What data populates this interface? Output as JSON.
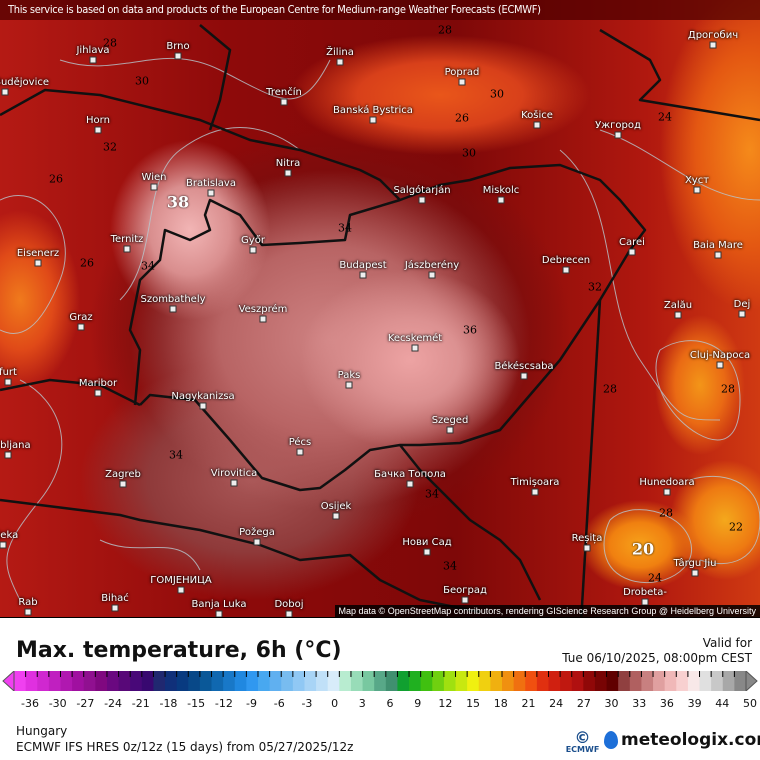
{
  "header": {
    "notice": "This service is based on data and products of the European Centre for Medium-range Weather Forecasts (ECMWF)"
  },
  "map": {
    "cities": [
      "Jihlava",
      "Brno",
      "České Budějovice",
      "Žilina",
      "Poprad",
      "Banská Bystrica",
      "Košice",
      "Ужгород",
      "Дрогобич",
      "Trenčín",
      "Horn",
      "Wien",
      "Bratislava",
      "Nitra",
      "Salgótarján",
      "Miskolc",
      "Хуст",
      "Győr",
      "Budapest",
      "Jászberény",
      "Debrecen",
      "Carei",
      "Baia Mare",
      "Ternitz",
      "Eisenerz",
      "Szombathely",
      "Graz",
      "Veszprém",
      "Zalău",
      "Dej",
      "Kecskemét",
      "Cluj-Napoca",
      "Békéscsaba",
      "Paks",
      "Maribor",
      "Nagykanizsa",
      "Pécs",
      "Szeged",
      "Ljubljana",
      "Zagreb",
      "Virovitica",
      "Бачка Топола",
      "Timișoara",
      "Hunedoara",
      "Osijek",
      "Rijeka",
      "Reșița",
      "Požega",
      "Нови Сад",
      "Târgu Jiu",
      "ГОМЈЕНИЦА",
      "Bihać",
      "Banja Luka",
      "Doboj",
      "Београд",
      "Drobeta-",
      "Rab",
      "furt"
    ],
    "contour_labels": [
      "28",
      "30",
      "30",
      "32",
      "26",
      "26",
      "34",
      "38",
      "34",
      "28",
      "26",
      "30",
      "24",
      "32",
      "36",
      "28",
      "28",
      "34",
      "34",
      "34",
      "28",
      "22",
      "20",
      "24"
    ],
    "attribution": "Map data © OpenStreetMap contributors, rendering GIScience Research Group @ Heidelberg University"
  },
  "legend": {
    "title": "Max. temperature, 6h (°C)",
    "valid_label": "Valid for",
    "valid_time": "Tue 06/10/2025, 08:00pm CEST",
    "ticks": [
      "-36",
      "-30",
      "-27",
      "-24",
      "-21",
      "-18",
      "-15",
      "-12",
      "-9",
      "-6",
      "-3",
      "0",
      "3",
      "6",
      "9",
      "12",
      "15",
      "18",
      "21",
      "24",
      "27",
      "30",
      "33",
      "36",
      "39",
      "44",
      "50"
    ],
    "colors": [
      "#f040f0",
      "#e030e0",
      "#d028d0",
      "#c020c0",
      "#b018b0",
      "#a010a0",
      "#901090",
      "#800880",
      "#6a0880",
      "#580878",
      "#480878",
      "#380870",
      "#202870",
      "#10307a",
      "#083a80",
      "#084888",
      "#0a5898",
      "#1068b0",
      "#1878c8",
      "#2088e0",
      "#3098f0",
      "#48a8f0",
      "#60b0f0",
      "#78bcf0",
      "#90c8f4",
      "#a8d4f6",
      "#c0e0f8",
      "#d8ecfa",
      "#b8ecd0",
      "#98dcb8",
      "#78c8a0",
      "#58a888",
      "#409070",
      "#10a030",
      "#20b020",
      "#40c010",
      "#70d010",
      "#a0e010",
      "#c8e810",
      "#f0f010",
      "#f0d010",
      "#f0b010",
      "#f09010",
      "#f07010",
      "#f05010",
      "#e03010",
      "#d02010",
      "#c01810",
      "#b01010",
      "#900808",
      "#780404",
      "#600000",
      "#904040",
      "#b06060",
      "#c88080",
      "#e0a0a0",
      "#f0b8b8",
      "#f8d0d0",
      "#f8e8e8",
      "#e0e0e0",
      "#c8c8c8",
      "#a8a8a8",
      "#888888"
    ],
    "region": "Hungary",
    "model": "ECMWF IFS HRES 0z/12z (15 days) from  05/27/2025/12z"
  },
  "branding": {
    "ecmwf": "ECMWF",
    "meteologix": "meteologix.com"
  }
}
